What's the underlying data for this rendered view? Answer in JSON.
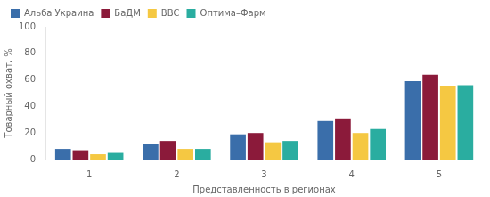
{
  "chart_data": {
    "type": "bar",
    "xlabel": "Представленность в регионах",
    "ylabel": "Товарный охват, %",
    "categories": [
      "1",
      "2",
      "3",
      "4",
      "5"
    ],
    "series": [
      {
        "name": "Альба Украина",
        "color": "#3A6EAA",
        "values": [
          8,
          12,
          19,
          29,
          59
        ]
      },
      {
        "name": "БаДМ",
        "color": "#8B1A3A",
        "values": [
          7,
          14,
          20,
          31,
          64
        ]
      },
      {
        "name": "ВВС",
        "color": "#F5C842",
        "values": [
          4,
          8,
          13,
          20,
          55
        ]
      },
      {
        "name": "Оптима–Фарм",
        "color": "#2AADA0",
        "values": [
          5,
          8,
          14,
          23,
          56
        ]
      }
    ],
    "ylim": [
      0,
      100
    ],
    "yticks": [
      0,
      20,
      40,
      60,
      80,
      100
    ],
    "grid": false,
    "legend": "upper left"
  }
}
